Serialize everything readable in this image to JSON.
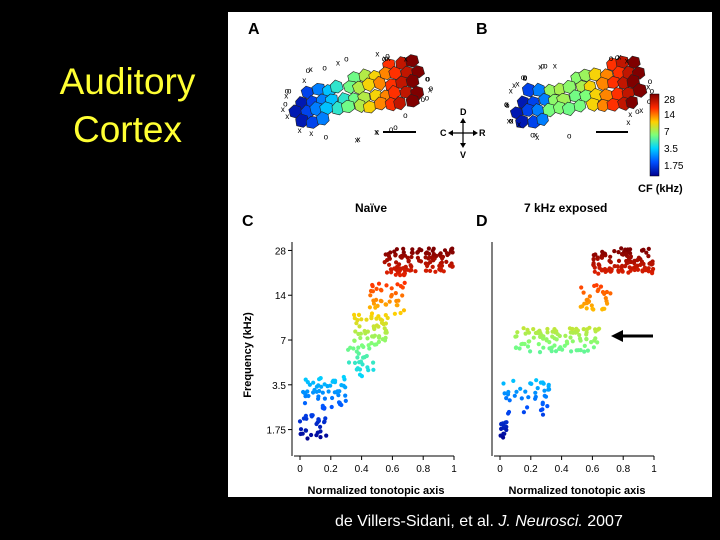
{
  "slide": {
    "title_line1": "Auditory",
    "title_line2": "Cortex",
    "citation_authors": "de Villers-Sidani, et al. ",
    "citation_journal": "J. Neurosci.",
    "citation_year": " 2007"
  },
  "panels": {
    "a_label": "A",
    "b_label": "B",
    "c_label": "C",
    "d_label": "D",
    "c_title": "Naïve",
    "d_title": "7 kHz exposed"
  },
  "compass": {
    "north": "D",
    "south": "V",
    "west": "C",
    "east": "R"
  },
  "colorbar": {
    "ticks": [
      "28",
      "14",
      "7",
      "3.5",
      "1.75"
    ],
    "label": "CF (kHz)",
    "colors": [
      "#7f0000",
      "#ff2a00",
      "#ffd000",
      "#7dff7a",
      "#00d4ff",
      "#0050ff",
      "#00008f"
    ]
  },
  "chart_data": [
    {
      "type": "scatter",
      "title": "Naïve",
      "xlabel": "Normalized tonotopic axis",
      "ylabel": "Frequency (kHz)",
      "xlim": [
        0,
        1
      ],
      "ylim": [
        1.4,
        30
      ],
      "yscale": "log",
      "x_ticks": [
        "0",
        "0.2",
        "0.4",
        "0.6",
        "0.8",
        "1"
      ],
      "y_ticks": [
        "28",
        "14",
        "7",
        "3.5",
        "1.75"
      ],
      "clusters": [
        {
          "x": [
            0.0,
            0.18
          ],
          "y": [
            1.5,
            2.2
          ],
          "n": 28
        },
        {
          "x": [
            0.02,
            0.3
          ],
          "y": [
            2.4,
            4.0
          ],
          "n": 55
        },
        {
          "x": [
            0.3,
            0.48
          ],
          "y": [
            4.0,
            6.5
          ],
          "n": 28
        },
        {
          "x": [
            0.35,
            0.58
          ],
          "y": [
            6.5,
            10.5
          ],
          "n": 50
        },
        {
          "x": [
            0.45,
            0.68
          ],
          "y": [
            10.5,
            17.0
          ],
          "n": 38
        },
        {
          "x": [
            0.55,
            1.0
          ],
          "y": [
            19.0,
            29.0
          ],
          "n": 120
        }
      ]
    },
    {
      "type": "scatter",
      "title": "7 kHz exposed",
      "xlabel": "Normalized tonotopic axis",
      "ylabel": "",
      "xlim": [
        0,
        1
      ],
      "ylim": [
        1.4,
        30
      ],
      "yscale": "log",
      "x_ticks": [
        "0",
        "0.2",
        "0.4",
        "0.6",
        "0.8",
        "1"
      ],
      "clusters": [
        {
          "x": [
            0.0,
            0.05
          ],
          "y": [
            1.5,
            2.0
          ],
          "n": 14
        },
        {
          "x": [
            0.02,
            0.32
          ],
          "y": [
            2.2,
            3.8
          ],
          "n": 40
        },
        {
          "x": [
            0.1,
            0.65
          ],
          "y": [
            5.8,
            8.6
          ],
          "n": 95
        },
        {
          "x": [
            0.5,
            0.72
          ],
          "y": [
            11.0,
            16.5
          ],
          "n": 30
        },
        {
          "x": [
            0.6,
            1.0
          ],
          "y": [
            19.5,
            29.0
          ],
          "n": 110
        }
      ],
      "annotation": "arrow pointing to 7 kHz band"
    }
  ]
}
